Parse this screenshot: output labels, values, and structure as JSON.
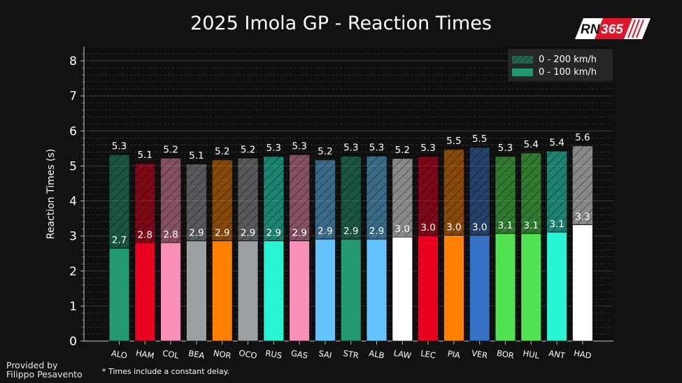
{
  "title": "2025 Imola GP - Reaction Times",
  "logo": {
    "left": "RN",
    "right": "365"
  },
  "ylabel": "Reaction Times (s)",
  "credit": {
    "line1": "Provided by",
    "line2": "Filippo Pesavento"
  },
  "footnote": "* Times include a constant delay.",
  "colors": {
    "background": "#121212",
    "panel": "#0f0f0f",
    "logo_red": "#e0142b"
  },
  "chart_data": {
    "type": "bar",
    "title": "2025 Imola GP - Reaction Times",
    "ylabel": "Reaction Times (s)",
    "ylim": [
      0,
      8.4
    ],
    "yticks": [
      0,
      1,
      2,
      3,
      4,
      5,
      6,
      7,
      8
    ],
    "grid": true,
    "legend_position": "top-right",
    "stacked_overlay": true,
    "categories": [
      "ALO",
      "HAM",
      "COL",
      "BEA",
      "NOR",
      "OCO",
      "RUS",
      "GAS",
      "SAI",
      "STR",
      "ALB",
      "LAW",
      "LEC",
      "PIA",
      "VER",
      "BOR",
      "HUL",
      "ANT",
      "HAD"
    ],
    "series": [
      {
        "name": "0 - 200 km/h",
        "style": "hatched",
        "values": [
          5.32,
          5.07,
          5.22,
          5.05,
          5.17,
          5.22,
          5.27,
          5.32,
          5.17,
          5.28,
          5.28,
          5.21,
          5.27,
          5.47,
          5.53,
          5.27,
          5.37,
          5.42,
          5.57
        ],
        "labels": [
          "5.3",
          "5.1",
          "5.2",
          "5.1",
          "5.2",
          "5.2",
          "5.3",
          "5.3",
          "5.2",
          "5.3",
          "5.3",
          "5.2",
          "5.3",
          "5.5",
          "5.5",
          "5.3",
          "5.4",
          "5.4",
          "5.6"
        ]
      },
      {
        "name": "0 - 100 km/h",
        "style": "solid",
        "values": [
          2.65,
          2.8,
          2.81,
          2.86,
          2.86,
          2.86,
          2.86,
          2.86,
          2.91,
          2.91,
          2.91,
          2.97,
          3.01,
          3.02,
          3.02,
          3.07,
          3.07,
          3.11,
          3.32
        ],
        "labels": [
          "2.7",
          "2.8",
          "2.8",
          "2.9",
          "2.9",
          "2.9",
          "2.9",
          "2.9",
          "2.9",
          "2.9",
          "2.9",
          "3.0",
          "3.0",
          "3.0",
          "3.0",
          "3.1",
          "3.1",
          "3.1",
          "3.3"
        ]
      }
    ],
    "bar_colors": [
      "#229971",
      "#e80020",
      "#f78fb8",
      "#9ba0a5",
      "#ff8000",
      "#9ba0a5",
      "#27f4d2",
      "#f78fb8",
      "#64c4ff",
      "#229971",
      "#64c4ff",
      "#ffffff",
      "#e80020",
      "#ff8000",
      "#3671c6",
      "#52e252",
      "#52e252",
      "#27f4d2",
      "#ffffff"
    ],
    "legend_colors": [
      "#229971",
      "#229971"
    ]
  }
}
